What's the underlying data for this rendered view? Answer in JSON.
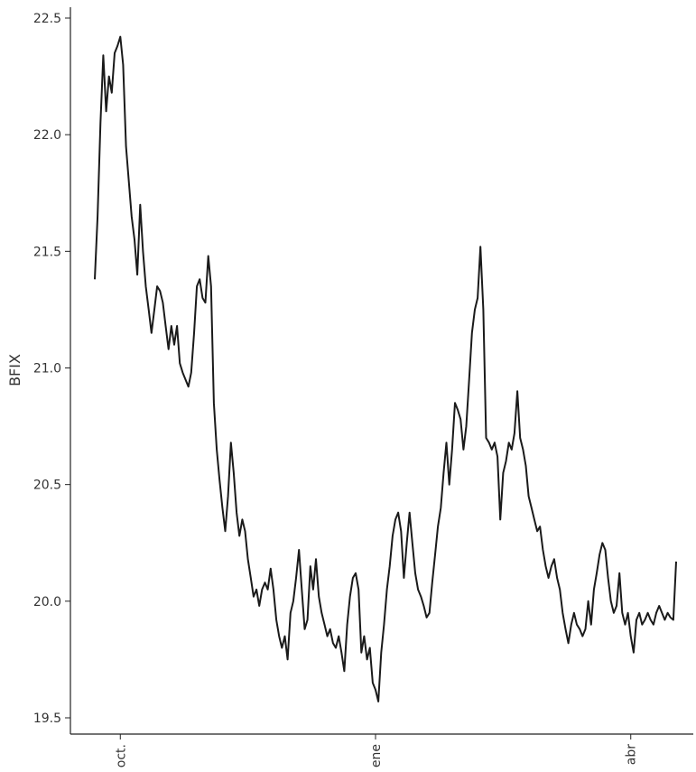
{
  "chart_data": {
    "type": "line",
    "title": "",
    "xlabel": "",
    "ylabel": "BFIX",
    "ylim": [
      19.5,
      22.5
    ],
    "yticks": [
      "19.5",
      "20.0",
      "20.5",
      "21.0",
      "21.5",
      "22.0",
      "22.5"
    ],
    "xlim": [
      0,
      280
    ],
    "xticks": [
      {
        "label": "oct.",
        "x": 9
      },
      {
        "label": "ene",
        "x": 99
      },
      {
        "label": "abr",
        "x": 189
      }
    ],
    "grid": false,
    "series": [
      {
        "color": "#1a1a1a",
        "points": [
          [
            0,
            21.38
          ],
          [
            1,
            21.65
          ],
          [
            2,
            22.05
          ],
          [
            3,
            22.34
          ],
          [
            4,
            22.1
          ],
          [
            5,
            22.25
          ],
          [
            6,
            22.18
          ],
          [
            7,
            22.35
          ],
          [
            8,
            22.38
          ],
          [
            9,
            22.42
          ],
          [
            10,
            22.3
          ],
          [
            11,
            21.95
          ],
          [
            12,
            21.8
          ],
          [
            13,
            21.65
          ],
          [
            14,
            21.55
          ],
          [
            15,
            21.4
          ],
          [
            16,
            21.7
          ],
          [
            17,
            21.5
          ],
          [
            18,
            21.35
          ],
          [
            19,
            21.25
          ],
          [
            20,
            21.15
          ],
          [
            21,
            21.25
          ],
          [
            22,
            21.35
          ],
          [
            23,
            21.33
          ],
          [
            24,
            21.28
          ],
          [
            25,
            21.18
          ],
          [
            26,
            21.08
          ],
          [
            27,
            21.18
          ],
          [
            28,
            21.1
          ],
          [
            29,
            21.18
          ],
          [
            30,
            21.02
          ],
          [
            31,
            20.98
          ],
          [
            32,
            20.95
          ],
          [
            33,
            20.92
          ],
          [
            34,
            20.98
          ],
          [
            35,
            21.15
          ],
          [
            36,
            21.35
          ],
          [
            37,
            21.38
          ],
          [
            38,
            21.3
          ],
          [
            39,
            21.28
          ],
          [
            40,
            21.48
          ],
          [
            41,
            21.35
          ],
          [
            42,
            20.85
          ],
          [
            43,
            20.65
          ],
          [
            44,
            20.52
          ],
          [
            45,
            20.4
          ],
          [
            46,
            20.3
          ],
          [
            47,
            20.45
          ],
          [
            48,
            20.68
          ],
          [
            49,
            20.55
          ],
          [
            50,
            20.38
          ],
          [
            51,
            20.28
          ],
          [
            52,
            20.35
          ],
          [
            53,
            20.3
          ],
          [
            54,
            20.18
          ],
          [
            55,
            20.1
          ],
          [
            56,
            20.02
          ],
          [
            57,
            20.05
          ],
          [
            58,
            19.98
          ],
          [
            59,
            20.05
          ],
          [
            60,
            20.08
          ],
          [
            61,
            20.05
          ],
          [
            62,
            20.14
          ],
          [
            63,
            20.05
          ],
          [
            64,
            19.92
          ],
          [
            65,
            19.85
          ],
          [
            66,
            19.8
          ],
          [
            67,
            19.85
          ],
          [
            68,
            19.75
          ],
          [
            69,
            19.95
          ],
          [
            70,
            20.0
          ],
          [
            71,
            20.1
          ],
          [
            72,
            20.22
          ],
          [
            73,
            20.05
          ],
          [
            74,
            19.88
          ],
          [
            75,
            19.92
          ],
          [
            76,
            20.15
          ],
          [
            77,
            20.05
          ],
          [
            78,
            20.18
          ],
          [
            79,
            20.02
          ],
          [
            80,
            19.95
          ],
          [
            81,
            19.9
          ],
          [
            82,
            19.85
          ],
          [
            83,
            19.88
          ],
          [
            84,
            19.82
          ],
          [
            85,
            19.8
          ],
          [
            86,
            19.85
          ],
          [
            87,
            19.78
          ],
          [
            88,
            19.7
          ],
          [
            89,
            19.9
          ],
          [
            90,
            20.02
          ],
          [
            91,
            20.1
          ],
          [
            92,
            20.12
          ],
          [
            93,
            20.05
          ],
          [
            94,
            19.78
          ],
          [
            95,
            19.85
          ],
          [
            96,
            19.75
          ],
          [
            97,
            19.8
          ],
          [
            98,
            19.65
          ],
          [
            99,
            19.62
          ],
          [
            100,
            19.57
          ],
          [
            101,
            19.78
          ],
          [
            102,
            19.9
          ],
          [
            103,
            20.05
          ],
          [
            104,
            20.15
          ],
          [
            105,
            20.28
          ],
          [
            106,
            20.35
          ],
          [
            107,
            20.38
          ],
          [
            108,
            20.3
          ],
          [
            109,
            20.1
          ],
          [
            110,
            20.25
          ],
          [
            111,
            20.38
          ],
          [
            112,
            20.25
          ],
          [
            113,
            20.12
          ],
          [
            114,
            20.05
          ],
          [
            115,
            20.02
          ],
          [
            116,
            19.98
          ],
          [
            117,
            19.93
          ],
          [
            118,
            19.95
          ],
          [
            119,
            20.08
          ],
          [
            120,
            20.2
          ],
          [
            121,
            20.32
          ],
          [
            122,
            20.4
          ],
          [
            123,
            20.55
          ],
          [
            124,
            20.68
          ],
          [
            125,
            20.5
          ],
          [
            126,
            20.65
          ],
          [
            127,
            20.85
          ],
          [
            128,
            20.82
          ],
          [
            129,
            20.78
          ],
          [
            130,
            20.65
          ],
          [
            131,
            20.75
          ],
          [
            132,
            20.95
          ],
          [
            133,
            21.15
          ],
          [
            134,
            21.25
          ],
          [
            135,
            21.3
          ],
          [
            136,
            21.52
          ],
          [
            137,
            21.25
          ],
          [
            138,
            20.7
          ],
          [
            139,
            20.68
          ],
          [
            140,
            20.65
          ],
          [
            141,
            20.68
          ],
          [
            142,
            20.62
          ],
          [
            143,
            20.35
          ],
          [
            144,
            20.55
          ],
          [
            145,
            20.6
          ],
          [
            146,
            20.68
          ],
          [
            147,
            20.65
          ],
          [
            148,
            20.72
          ],
          [
            149,
            20.9
          ],
          [
            150,
            20.7
          ],
          [
            151,
            20.65
          ],
          [
            152,
            20.58
          ],
          [
            153,
            20.45
          ],
          [
            154,
            20.4
          ],
          [
            155,
            20.35
          ],
          [
            156,
            20.3
          ],
          [
            157,
            20.32
          ],
          [
            158,
            20.22
          ],
          [
            159,
            20.15
          ],
          [
            160,
            20.1
          ],
          [
            161,
            20.15
          ],
          [
            162,
            20.18
          ],
          [
            163,
            20.1
          ],
          [
            164,
            20.05
          ],
          [
            165,
            19.95
          ],
          [
            166,
            19.88
          ],
          [
            167,
            19.82
          ],
          [
            168,
            19.9
          ],
          [
            169,
            19.95
          ],
          [
            170,
            19.9
          ],
          [
            171,
            19.88
          ],
          [
            172,
            19.85
          ],
          [
            173,
            19.88
          ],
          [
            174,
            20.0
          ],
          [
            175,
            19.9
          ],
          [
            176,
            20.05
          ],
          [
            177,
            20.12
          ],
          [
            178,
            20.2
          ],
          [
            179,
            20.25
          ],
          [
            180,
            20.22
          ],
          [
            181,
            20.1
          ],
          [
            182,
            20.0
          ],
          [
            183,
            19.95
          ],
          [
            184,
            19.98
          ],
          [
            185,
            20.12
          ],
          [
            186,
            19.95
          ],
          [
            187,
            19.9
          ],
          [
            188,
            19.95
          ],
          [
            189,
            19.85
          ],
          [
            190,
            19.78
          ],
          [
            191,
            19.92
          ],
          [
            192,
            19.95
          ],
          [
            193,
            19.9
          ],
          [
            194,
            19.92
          ],
          [
            195,
            19.95
          ],
          [
            196,
            19.92
          ],
          [
            197,
            19.9
          ],
          [
            198,
            19.95
          ],
          [
            199,
            19.98
          ],
          [
            200,
            19.95
          ],
          [
            201,
            19.92
          ],
          [
            202,
            19.95
          ],
          [
            203,
            19.93
          ],
          [
            204,
            19.92
          ],
          [
            205,
            20.17
          ]
        ]
      }
    ]
  }
}
